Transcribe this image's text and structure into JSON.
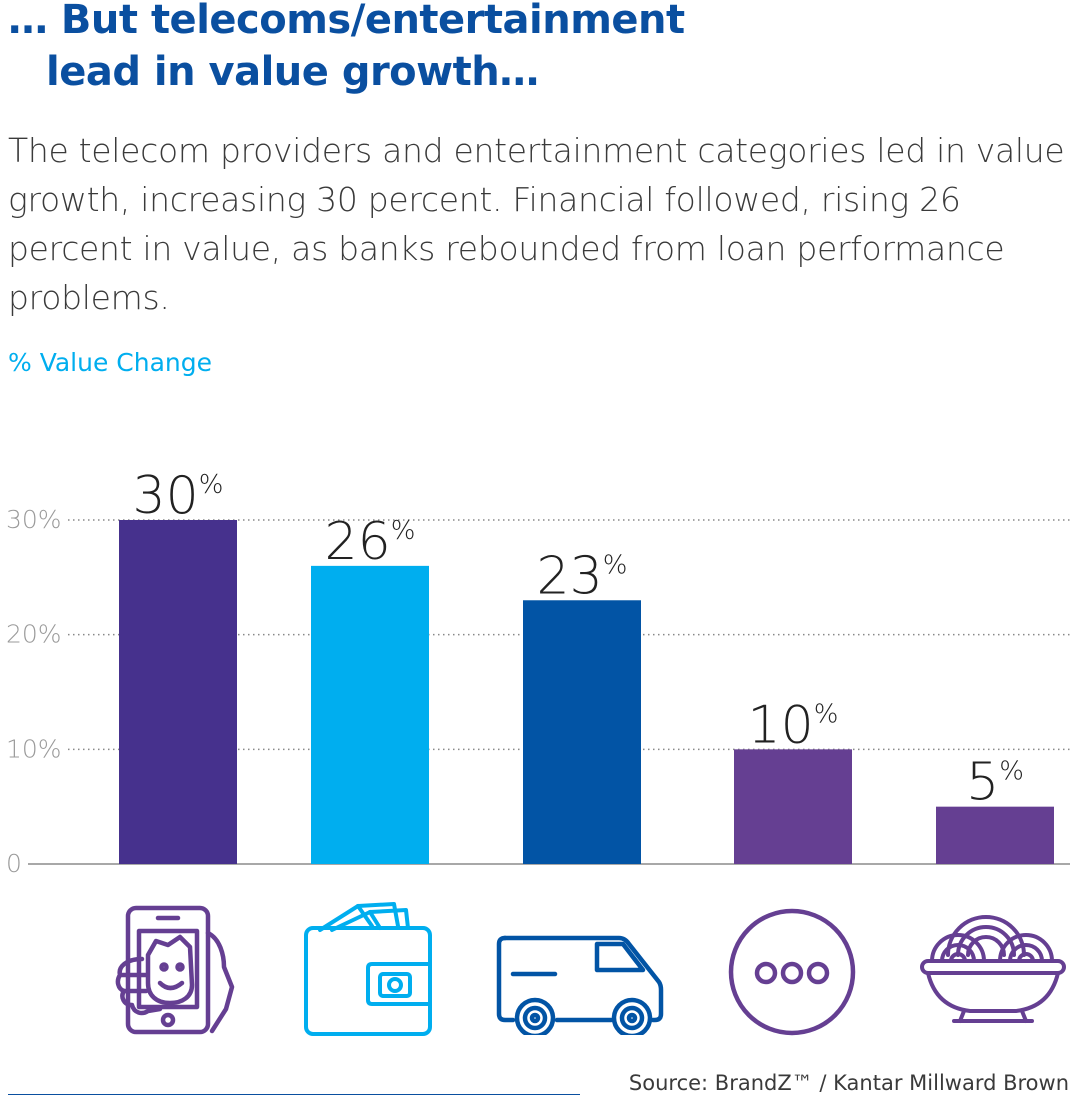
{
  "title_lines": [
    "… But telecoms/entertainment",
    "lead in value growth…"
  ],
  "body": "The telecom providers and entertainment categories led in value growth, increasing 30 percent. Financial followed, rising 26 percent in value, as banks rebounded from loan performance problems.",
  "source": "Source: BrandZ™ / Kantar Millward Brown",
  "colors": {
    "title": "#0a4fa0",
    "accent": "#00aeef",
    "telecom": "#46318d",
    "financial": "#00aeef",
    "logistics": "#0254a5",
    "other": "#653f92",
    "text": "#3a3a3a",
    "grid": "#888888"
  },
  "icons": [
    "smartphone-selfie-icon",
    "wallet-icon",
    "delivery-van-icon",
    "ellipsis-circle-icon",
    "noodle-bowl-icon"
  ],
  "chart_data": {
    "type": "bar",
    "ylabel": "% Value Change",
    "ylim": [
      0,
      30
    ],
    "yticks": [
      0,
      10,
      20,
      30
    ],
    "ytick_labels": [
      "0",
      "10%",
      "20%",
      "30%"
    ],
    "grid": true,
    "values": [
      30,
      26,
      23,
      10,
      5
    ],
    "value_labels": [
      {
        "number": "30",
        "unit": "%"
      },
      {
        "number": "26",
        "unit": "%"
      },
      {
        "number": "23",
        "unit": "%"
      },
      {
        "number": "10",
        "unit": "%"
      },
      {
        "number": "5",
        "unit": "%"
      }
    ],
    "bar_colors": [
      "#46318d",
      "#00aeef",
      "#0254a5",
      "#653f92",
      "#653f92"
    ]
  }
}
